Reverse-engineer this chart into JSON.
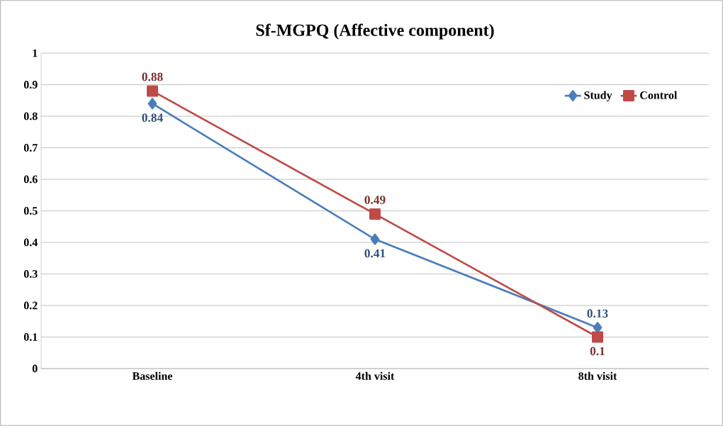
{
  "chart_data": {
    "type": "line",
    "title": "Sf-MGPQ (Affective component)",
    "categories": [
      "Baseline",
      "4th visit",
      "8th visit"
    ],
    "series": [
      {
        "name": "Study",
        "color": "#4a7ebb",
        "marker": "diamond",
        "values": [
          0.84,
          0.41,
          0.13
        ]
      },
      {
        "name": "Control",
        "color": "#be4b48",
        "marker": "square",
        "values": [
          0.88,
          0.49,
          0.1
        ]
      }
    ],
    "ylim": [
      0,
      1
    ],
    "yticks": [
      0,
      0.1,
      0.2,
      0.3,
      0.4,
      0.5,
      0.6,
      0.7,
      0.8,
      0.9,
      1
    ],
    "grid": "y",
    "legend": "top right",
    "data_labels": true,
    "line_style": "solid"
  }
}
